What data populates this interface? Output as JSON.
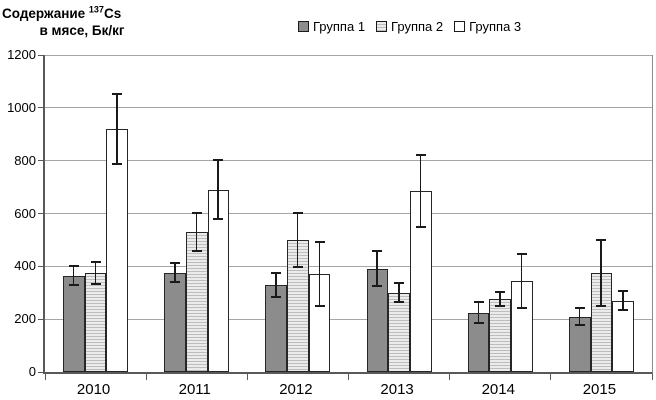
{
  "title": {
    "line1_text": "Содержание ",
    "isotope_sup": "137",
    "element": "Cs",
    "line2": "в мясе, Бк/кг"
  },
  "chart_data": {
    "type": "bar",
    "title": "Содержание 137Cs в мясе, Бк/кг",
    "xlabel": "",
    "ylabel": "Содержание 137Cs в мясе, Бк/кг",
    "categories": [
      "2010",
      "2011",
      "2012",
      "2013",
      "2014",
      "2015"
    ],
    "series": [
      {
        "name": "Группа 1",
        "style": "solid-gray",
        "values": [
          365,
          375,
          330,
          390,
          225,
          210
        ],
        "errors": [
          40,
          40,
          50,
          70,
          45,
          35
        ]
      },
      {
        "name": "Группа 2",
        "style": "horizontal-stripes",
        "values": [
          375,
          530,
          500,
          300,
          275,
          375
        ],
        "errors": [
          45,
          75,
          105,
          40,
          30,
          130
        ]
      },
      {
        "name": "Группа 3",
        "style": "white",
        "values": [
          920,
          690,
          370,
          685,
          345,
          270
        ],
        "errors": [
          135,
          115,
          125,
          140,
          105,
          40
        ]
      }
    ],
    "ylim": [
      0,
      1200
    ],
    "yticks": [
      0,
      200,
      400,
      600,
      800,
      1000,
      1200
    ],
    "grid": true,
    "error_bars": true,
    "legend_position": "top-center",
    "colors": {
      "group1_fill": "#8c8c8c",
      "group2_fill": "#ebebeb",
      "group2_stripe": "#bdbdbd",
      "group3_fill": "#ffffff",
      "bar_border": "#262626",
      "gridline": "#a6a6a6",
      "axis": "#595959",
      "error_bar": "#1a1a1a",
      "text": "#000000"
    }
  }
}
